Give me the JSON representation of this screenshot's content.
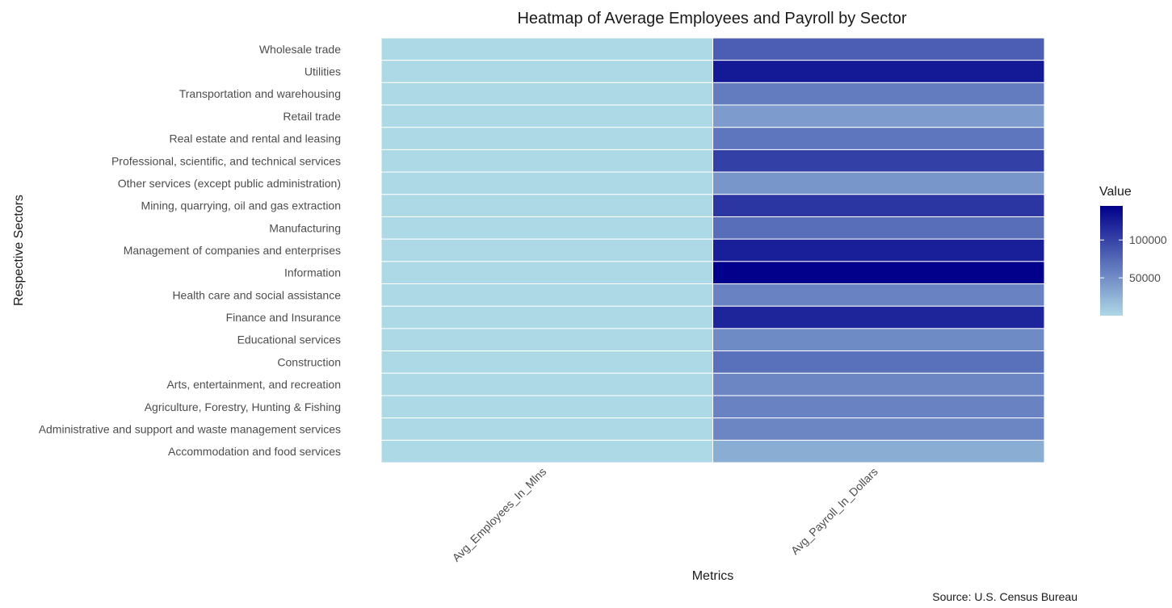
{
  "chart_data": {
    "type": "heatmap",
    "title": "Heatmap of Average Employees and Payroll by Sector",
    "xlabel": "Metrics",
    "ylabel": "Respective Sectors",
    "caption": "Source: U.S. Census Bureau",
    "x_categories": [
      "Avg_Employees_In_Mlns",
      "Avg_Payroll_In_Dollars"
    ],
    "y_categories": [
      "Wholesale trade",
      "Utilities",
      "Transportation and warehousing",
      "Retail trade",
      "Real estate and rental and leasing",
      "Professional, scientific, and technical services",
      "Other services (except public administration)",
      "Mining, quarrying, oil and gas extraction",
      "Manufacturing",
      "Management of companies and enterprises",
      "Information",
      "Health care and social assistance",
      "Finance and Insurance",
      "Educational services",
      "Construction",
      "Arts, entertainment, and recreation",
      "Agriculture, Forestry, Hunting & Fishing",
      "Administrative and support and waste management services",
      "Accommodation and food services"
    ],
    "series": [
      {
        "name": "Avg_Employees_In_Mlns",
        "values": [
          6,
          1,
          6,
          16,
          2,
          10,
          5,
          1,
          13,
          3,
          3,
          20,
          6,
          4,
          7,
          2,
          0.2,
          11,
          14
        ]
      },
      {
        "name": "Avg_Payroll_In_Dollars",
        "values": [
          82000,
          128000,
          62000,
          40000,
          66000,
          102000,
          44000,
          109000,
          71000,
          124000,
          144000,
          58000,
          120000,
          52000,
          70000,
          55000,
          58000,
          55000,
          29000
        ]
      }
    ],
    "legend": {
      "title": "Value",
      "position": "right",
      "ticks": [
        100000,
        50000
      ],
      "tick_labels": [
        "100000",
        "50000"
      ],
      "min": 0,
      "max": 145000,
      "color_low": "#add8e6",
      "color_high": "#00008b"
    },
    "grid": true
  }
}
